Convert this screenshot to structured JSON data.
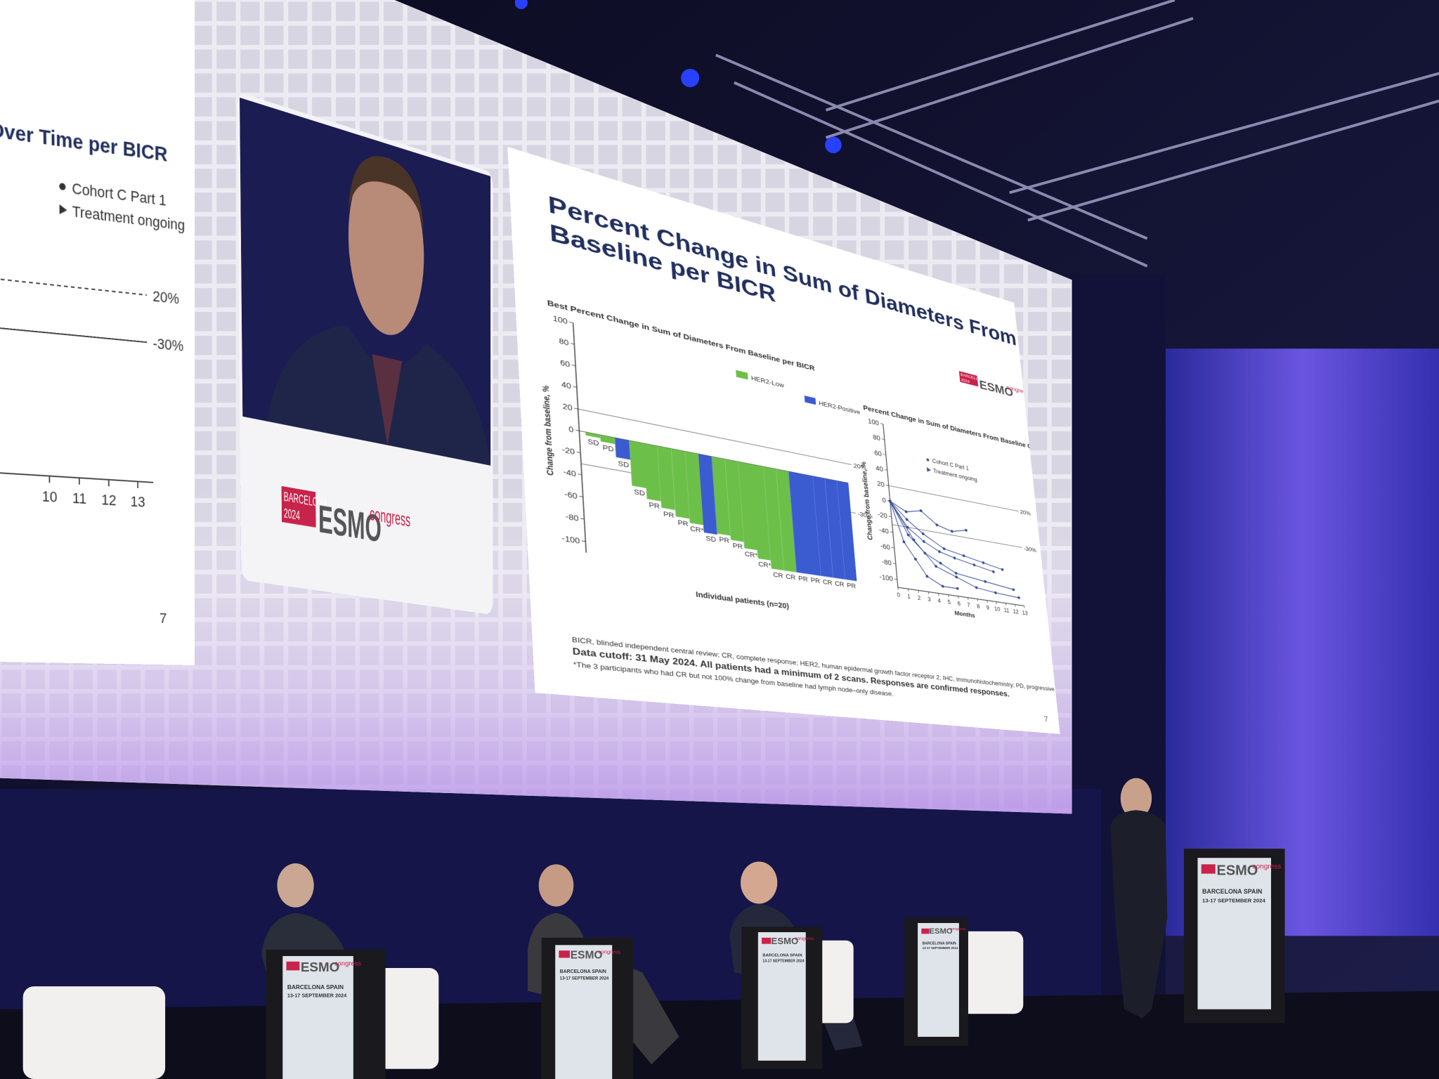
{
  "left_slide": {
    "title": "ne Over Time per BICR",
    "legend": [
      "Cohort C Part 1",
      "Treatment ongoing"
    ],
    "ref_labels": [
      "20%",
      "-30%"
    ],
    "xticks": [
      10,
      11,
      12,
      13
    ],
    "page": "7"
  },
  "inset": {
    "badge": [
      "BARCELONA",
      "2024"
    ],
    "logo": "ESMO",
    "suffix": "congress"
  },
  "slide": {
    "title": [
      "Percent Change in Sum of Diameters From",
      "Baseline per BICR"
    ],
    "badge": [
      "BARCELONA",
      "2024"
    ],
    "logo": "ESMO",
    "suffix": "congress",
    "footnotes": [
      "BICR, blinded independent central review; CR, complete response; HER2, human epidermal growth factor receptor 2; IHC, immunohistochemistry; PD, progressive disease; PR, partial response; SD, stable disease.",
      "Data cutoff: 31 May 2024. All patients had a minimum of 2 scans. Responses are confirmed responses.",
      "*The 3 participants who had CR but not 100% change from baseline had lymph node–only disease."
    ],
    "page": "7"
  },
  "chart_data": [
    {
      "type": "bar",
      "title": "Best Percent Change in Sum of Diameters From Baseline per BICR",
      "y_label": "Change from baseline, %",
      "x_label": "Individual patients (n=20)",
      "ylim": [
        -110,
        100
      ],
      "yticks": [
        100,
        80,
        60,
        40,
        20,
        0,
        -20,
        -40,
        -60,
        -80,
        -100
      ],
      "reference_lines": [
        {
          "value": 20,
          "label": "20%"
        },
        {
          "value": -30,
          "label": "-30%"
        }
      ],
      "legend": [
        {
          "name": "HER2-Low",
          "color": "#6cc04a"
        },
        {
          "name": "HER2-Positive",
          "color": "#3b5bd1"
        }
      ],
      "categories": [
        "SD",
        "PD",
        "SD",
        "SD",
        "PR",
        "PR",
        "PR",
        "CR*",
        "SD",
        "PR",
        "PR",
        "CR*",
        "CR*",
        "CR",
        "CR",
        "PR",
        "PR",
        "CR",
        "CR",
        "PR"
      ],
      "values": [
        -3,
        -6,
        -18,
        -42,
        -52,
        -58,
        -64,
        -68,
        -75,
        -74,
        -78,
        -84,
        -92,
        -100,
        -100,
        -100,
        -100,
        -100,
        -100,
        -100
      ],
      "colors": [
        "#6cc04a",
        "#6cc04a",
        "#3b5bd1",
        "#6cc04a",
        "#6cc04a",
        "#6cc04a",
        "#6cc04a",
        "#6cc04a",
        "#3b5bd1",
        "#6cc04a",
        "#6cc04a",
        "#6cc04a",
        "#6cc04a",
        "#6cc04a",
        "#6cc04a",
        "#3b5bd1",
        "#3b5bd1",
        "#3b5bd1",
        "#3b5bd1",
        "#3b5bd1"
      ]
    },
    {
      "type": "line",
      "title": "Percent Change in Sum of Diameters From Baseline Over Time per BICR",
      "y_label": "Change from baseline, %",
      "x_label": "Months",
      "xlim": [
        0,
        13
      ],
      "xticks": [
        0,
        1,
        2,
        3,
        4,
        5,
        6,
        7,
        8,
        9,
        10,
        11,
        12,
        13
      ],
      "ylim": [
        -110,
        100
      ],
      "yticks": [
        100,
        80,
        60,
        40,
        20,
        0,
        -20,
        -40,
        -60,
        -80,
        -100
      ],
      "reference_lines": [
        {
          "value": 20,
          "label": "20%"
        },
        {
          "value": -30,
          "label": "-30%"
        }
      ],
      "legend": [
        "Cohort C Part 1",
        "Treatment ongoing"
      ],
      "color": "#3a4f9c",
      "series": [
        {
          "x": [
            0,
            1.5,
            3,
            4.5,
            6,
            7.5
          ],
          "values": [
            0,
            -10,
            -5,
            -20,
            -25,
            -20
          ]
        },
        {
          "x": [
            0,
            1.5,
            3,
            4.5,
            6,
            8,
            10
          ],
          "values": [
            0,
            -30,
            -45,
            -55,
            -60,
            -65,
            -70
          ]
        },
        {
          "x": [
            0,
            1.5,
            3,
            4.5,
            6,
            9,
            12
          ],
          "values": [
            0,
            -40,
            -60,
            -70,
            -80,
            -85,
            -90
          ]
        },
        {
          "x": [
            0,
            1,
            2,
            3,
            4.5,
            6
          ],
          "values": [
            0,
            -50,
            -70,
            -90,
            -100,
            -100
          ]
        },
        {
          "x": [
            0,
            1.5,
            3,
            5,
            7,
            9,
            11
          ],
          "values": [
            0,
            -20,
            -35,
            -50,
            -55,
            -60,
            -65
          ]
        },
        {
          "x": [
            0,
            2,
            4,
            6,
            8,
            10,
            12.5
          ],
          "values": [
            0,
            -45,
            -75,
            -85,
            -95,
            -98,
            -100
          ]
        }
      ]
    }
  ],
  "lectern": {
    "logo": "ESMO",
    "suffix": "congress",
    "lines": [
      "BARCELONA SPAIN",
      "13-17 SEPTEMBER 2024"
    ]
  }
}
